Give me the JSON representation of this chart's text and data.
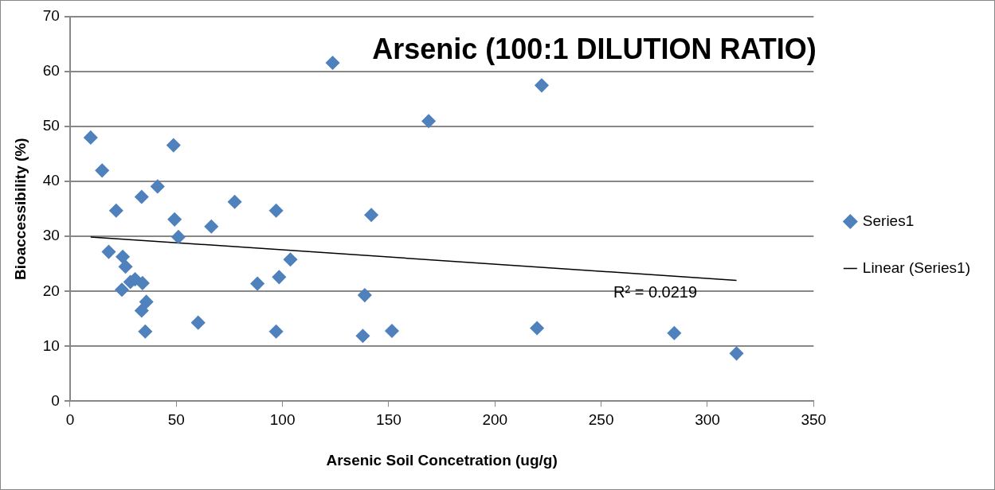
{
  "chart_data": {
    "type": "scatter",
    "title": "Arsenic (100:1 DILUTION RATIO)",
    "xlabel": "Arsenic Soil Concetration (ug/g)",
    "ylabel": "Bioaccessibility (%)",
    "xlim": [
      0,
      350
    ],
    "xticks": [
      0,
      50,
      100,
      150,
      200,
      250,
      300,
      350
    ],
    "ylim": [
      0,
      70
    ],
    "yticks": [
      0,
      10,
      20,
      30,
      40,
      50,
      60,
      70
    ],
    "grid": "y",
    "legend": "right",
    "marker": "diamond",
    "series": [
      {
        "name": "Series1",
        "color": "#4f81bd",
        "x": [
          9.7,
          15.1,
          21.7,
          18.2,
          24.8,
          26.1,
          24.4,
          28.4,
          30.6,
          34.1,
          33.7,
          35.9,
          35.4,
          33.7,
          41.2,
          48.7,
          49.2,
          51.0,
          60.3,
          66.5,
          77.5,
          88.2,
          97.0,
          97.0,
          98.4,
          103.7,
          123.6,
          141.8,
          138.7,
          137.8,
          151.5,
          168.8,
          222.0,
          219.8,
          284.4,
          313.7
        ],
        "values": [
          48.0,
          42.0,
          34.7,
          27.2,
          26.3,
          24.5,
          20.3,
          21.7,
          22.2,
          21.5,
          16.5,
          18.1,
          12.7,
          37.2,
          39.1,
          46.6,
          33.1,
          29.9,
          14.3,
          31.8,
          36.3,
          21.4,
          34.7,
          12.7,
          22.6,
          25.8,
          61.6,
          33.9,
          19.3,
          11.9,
          12.8,
          51.0,
          57.5,
          13.3,
          12.4,
          8.7
        ]
      },
      {
        "name": "Linear (Series1)",
        "type": "line",
        "color": "#000000",
        "marker": "none",
        "x": [
          9.7,
          313.7
        ],
        "values": [
          29.9,
          22.0
        ]
      }
    ],
    "annotations": [
      "R² = 0.0219"
    ]
  }
}
